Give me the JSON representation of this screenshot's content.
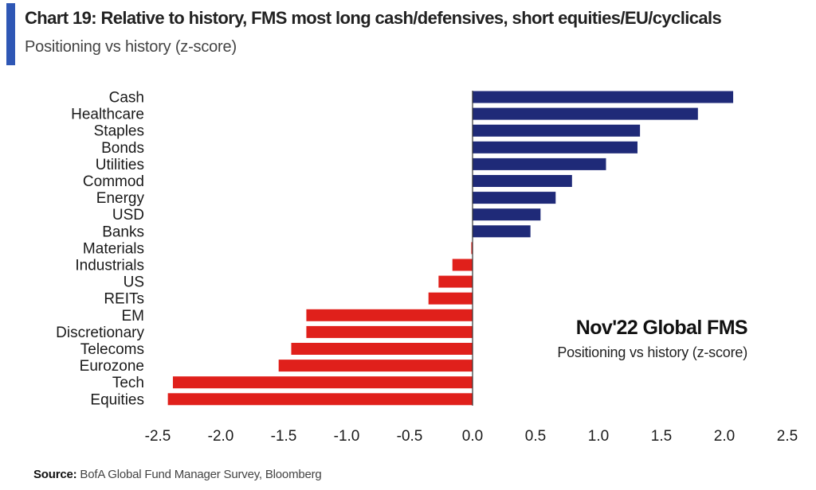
{
  "header": {
    "title": "Chart 19: Relative to history, FMS most long cash/defensives, short equities/EU/cyclicals",
    "subtitle": "Positioning vs history (z-score)"
  },
  "inset": {
    "title": "Nov'22 Global FMS",
    "subtitle": "Positioning vs history (z-score)"
  },
  "footer": {
    "source_label": "Source:",
    "source_text": "BofA Global Fund Manager Survey, Bloomberg"
  },
  "colors": {
    "positive": "#1f2a78",
    "negative": "#e0201b",
    "accent": "#2f57b5",
    "axis": "#333333"
  },
  "chart_data": {
    "type": "bar",
    "orientation": "horizontal",
    "categories": [
      "Cash",
      "Healthcare",
      "Staples",
      "Bonds",
      "Utilities",
      "Commod",
      "Energy",
      "USD",
      "Banks",
      "Materials",
      "Industrials",
      "US",
      "REITs",
      "EM",
      "Discretionary",
      "Telecoms",
      "Eurozone",
      "Tech",
      "Equities"
    ],
    "values": [
      2.07,
      1.79,
      1.33,
      1.31,
      1.06,
      0.79,
      0.66,
      0.54,
      0.46,
      -0.01,
      -0.16,
      -0.27,
      -0.35,
      -1.32,
      -1.32,
      -1.44,
      -1.54,
      -2.38,
      -2.42
    ],
    "xlim": [
      -2.5,
      2.5
    ],
    "xticks": [
      -2.5,
      -2.0,
      -1.5,
      -1.0,
      -0.5,
      0.0,
      0.5,
      1.0,
      1.5,
      2.0,
      2.5
    ],
    "xtick_labels": [
      "-2.5",
      "-2.0",
      "-1.5",
      "-1.0",
      "-0.5",
      "0.0",
      "0.5",
      "1.0",
      "1.5",
      "2.0",
      "2.5"
    ],
    "title": "",
    "xlabel": "",
    "ylabel": "",
    "grid": false
  }
}
